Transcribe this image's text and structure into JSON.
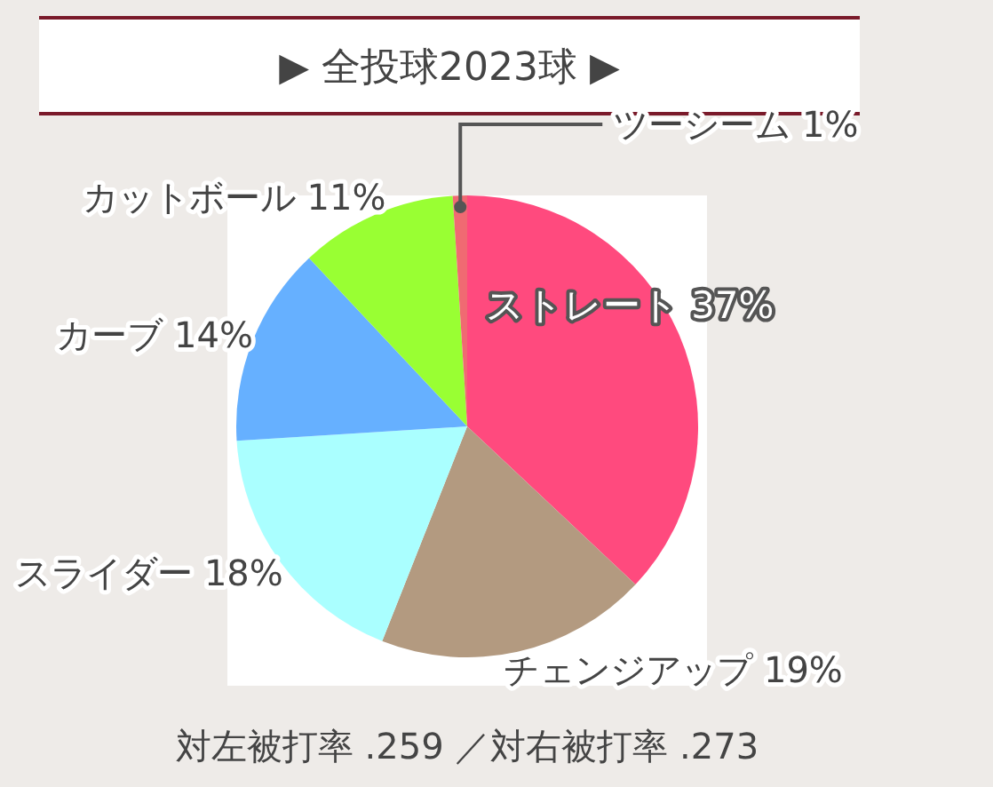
{
  "chart_data": {
    "type": "pie",
    "title": "▶ 全投球2023球 ▶",
    "categories": [
      "ストレート",
      "チェンジアップ",
      "スライダー",
      "カーブ",
      "カットボール",
      "ツーシーム"
    ],
    "values": [
      37,
      19,
      18,
      14,
      11,
      1
    ],
    "value_labels": [
      "37%",
      "19%",
      "18%",
      "14%",
      "11%",
      "1%"
    ],
    "colors": [
      "#ff4a7e",
      "#b39a80",
      "#aaffff",
      "#66b0ff",
      "#99ff33",
      "#f06a72"
    ],
    "annotations": [
      "対左被打率 .259 ／対右被打率 .273"
    ]
  }
}
